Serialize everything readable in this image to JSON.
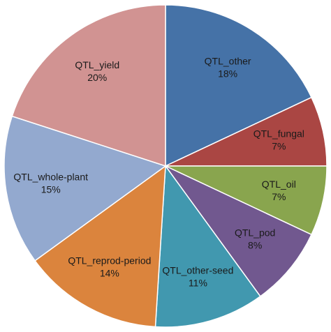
{
  "chart_data": {
    "type": "pie",
    "categories": [
      "QTL_other",
      "QTL_fungal",
      "QTL_oil",
      "QTL_pod",
      "QTL_other-seed",
      "QTL_reprod-period",
      "QTL_whole-plant",
      "QTL_yield"
    ],
    "values": [
      18,
      7,
      7,
      8,
      11,
      14,
      15,
      20
    ],
    "value_labels": [
      "18%",
      "7%",
      "7%",
      "8%",
      "11%",
      "14%",
      "15%",
      "20%"
    ],
    "colors": [
      "#4572a7",
      "#aa4643",
      "#89a54e",
      "#71588f",
      "#4198af",
      "#db843d",
      "#93a9cf",
      "#d19392"
    ]
  }
}
